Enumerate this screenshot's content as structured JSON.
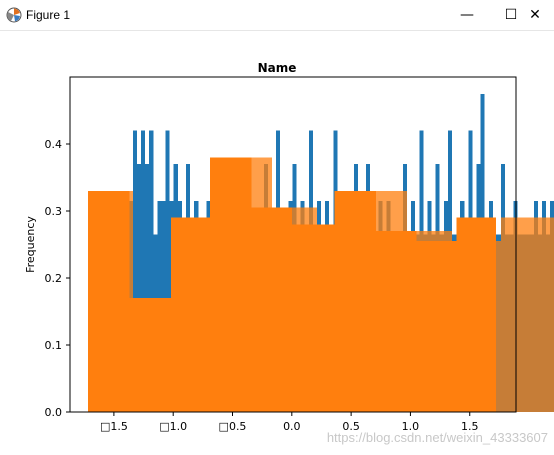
{
  "window": {
    "title": "Figure 1",
    "minimize_glyph": "—",
    "maximize_glyph": "☐",
    "close_glyph": "✕"
  },
  "watermark": "https://blog.csdn.net/weixin_43333607",
  "chart_data": {
    "type": "bar",
    "title": "Name",
    "xlabel": "",
    "ylabel": "Frequency",
    "xlim": [
      -1.87,
      1.89
    ],
    "ylim": [
      0,
      0.5
    ],
    "xticks": [
      -1.5,
      -1.0,
      -0.5,
      0.0,
      0.5,
      1.0,
      1.5
    ],
    "xtick_labels": [
      "□1.5",
      "□1.0",
      "□0.5",
      "0.0",
      "0.5",
      "1.0",
      "1.5"
    ],
    "yticks": [
      0.0,
      0.1,
      0.2,
      0.3,
      0.4
    ],
    "ytick_labels": [
      "0.0",
      "0.1",
      "0.2",
      "0.3",
      "0.4"
    ],
    "grid": false,
    "series": [
      {
        "color": "#1f77b4",
        "bin_start": -1.72,
        "bin_width": 0.0345,
        "values": [
          0.265,
          0.315,
          0.215,
          0.315,
          0.265,
          0.315,
          0.215,
          0.315,
          0.265,
          0.315,
          0.315,
          0.42,
          0.37,
          0.42,
          0.37,
          0.42,
          0.265,
          0.315,
          0.315,
          0.42,
          0.315,
          0.37,
          0.315,
          0.265,
          0.37,
          0.265,
          0.315,
          0.265,
          0.265,
          0.315,
          0.315,
          0.265,
          0.315,
          0.265,
          0.37,
          0.265,
          0.215,
          0.37,
          0.265,
          0.315,
          0.265,
          0.265,
          0.265,
          0.37,
          0.265,
          0.265,
          0.42,
          0.265,
          0.265,
          0.315,
          0.37,
          0.265,
          0.315,
          0.265,
          0.42,
          0.265,
          0.315,
          0.265,
          0.315,
          0.265,
          0.42,
          0.315,
          0.265,
          0.315,
          0.265,
          0.37,
          0.265,
          0.315,
          0.37,
          0.315,
          0.265,
          0.315,
          0.265,
          0.315,
          0.265,
          0.265,
          0.265,
          0.37,
          0.265,
          0.315,
          0.265,
          0.42,
          0.265,
          0.315,
          0.265,
          0.37,
          0.265,
          0.315,
          0.42,
          0.265,
          0.265,
          0.315,
          0.265,
          0.42,
          0.265,
          0.37,
          0.475,
          0.265,
          0.315,
          0.265,
          0.265,
          0.37,
          0.265,
          0.265,
          0.315,
          0.265,
          0.265,
          0.265,
          0.265,
          0.315,
          0.265,
          0.315,
          0.265,
          0.315,
          0.265,
          0.265
        ]
      },
      {
        "color": "#ff7f0e",
        "alpha": 0.75,
        "bin_start": -1.72,
        "bin_width": 0.0345,
        "values": [
          0.33,
          0.33,
          0.33,
          0.33,
          0.33,
          0.33,
          0.33,
          0.33,
          0.33,
          0.33,
          0.33,
          0.17,
          0.17,
          0.17,
          0.17,
          0.17,
          0.17,
          0.17,
          0.17,
          0.17,
          0.17,
          0.17,
          0.17,
          0.29,
          0.29,
          0.29,
          0.29,
          0.29,
          0.29,
          0.29,
          0.29,
          0.29,
          0.29,
          0.29,
          0.38,
          0.38,
          0.38,
          0.38,
          0.38,
          0.38,
          0.38,
          0.38,
          0.38,
          0.38,
          0.38,
          0.305,
          0.305,
          0.305,
          0.305,
          0.305,
          0.305,
          0.305,
          0.305,
          0.305,
          0.305,
          0.305,
          0.28,
          0.28,
          0.28,
          0.28,
          0.28,
          0.28,
          0.28,
          0.28,
          0.28,
          0.28,
          0.28,
          0.33,
          0.33,
          0.33,
          0.33,
          0.33,
          0.33,
          0.33,
          0.33,
          0.33,
          0.33,
          0.33,
          0.27,
          0.27,
          0.27,
          0.27,
          0.27,
          0.27,
          0.27,
          0.27,
          0.27,
          0.27,
          0.27,
          0.255,
          0.255,
          0.255,
          0.255,
          0.255,
          0.255,
          0.255,
          0.255,
          0.255,
          0.255,
          0.255,
          0.255,
          0.29,
          0.29,
          0.29,
          0.29,
          0.29,
          0.29,
          0.29,
          0.29,
          0.29,
          0.29,
          0.29,
          0.29,
          0.29,
          0.29,
          0.29
        ]
      },
      {
        "color": "#ff7f0e",
        "bins": [
          {
            "x0": -1.72,
            "x1": -1.37,
            "value": 0.33
          },
          {
            "x0": -1.37,
            "x1": -1.02,
            "value": 0.17
          },
          {
            "x0": -1.02,
            "x1": -0.69,
            "value": 0.29
          },
          {
            "x0": -0.69,
            "x1": -0.34,
            "value": 0.38
          },
          {
            "x0": -0.34,
            "x1": 0.0,
            "value": 0.305
          },
          {
            "x0": 0.0,
            "x1": 0.36,
            "value": 0.28
          },
          {
            "x0": 0.36,
            "x1": 0.71,
            "value": 0.33
          },
          {
            "x0": 0.71,
            "x1": 1.05,
            "value": 0.27
          },
          {
            "x0": 1.05,
            "x1": 1.39,
            "value": 0.255
          },
          {
            "x0": 1.39,
            "x1": 1.72,
            "value": 0.29
          }
        ]
      }
    ]
  }
}
